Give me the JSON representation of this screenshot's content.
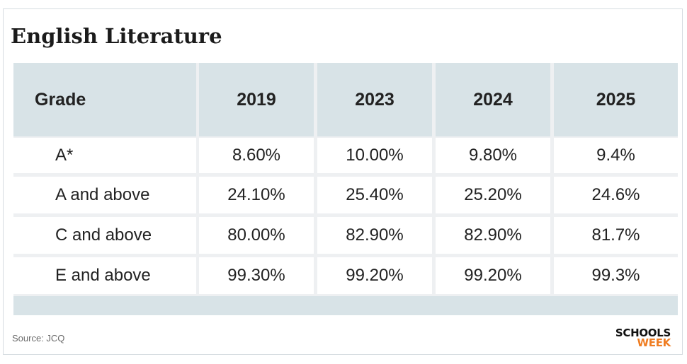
{
  "title": "English Literature",
  "table": {
    "headers": [
      "Grade",
      "2019",
      "2023",
      "2024",
      "2025"
    ],
    "rows": [
      [
        "A*",
        "8.60%",
        "10.00%",
        "9.80%",
        "9.4%"
      ],
      [
        "A and above",
        "24.10%",
        "25.40%",
        "25.20%",
        "24.6%"
      ],
      [
        "C and above",
        "80.00%",
        "82.90%",
        "82.90%",
        "81.7%"
      ],
      [
        "E and above",
        "99.30%",
        "99.20%",
        "99.20%",
        "99.3%"
      ]
    ]
  },
  "source": "Source: JCQ",
  "logo": {
    "line1": "SCHOOLS",
    "line2": "WEEK"
  },
  "colors": {
    "header_bg": "#d8e3e7",
    "logo_accent": "#ef7d22"
  }
}
